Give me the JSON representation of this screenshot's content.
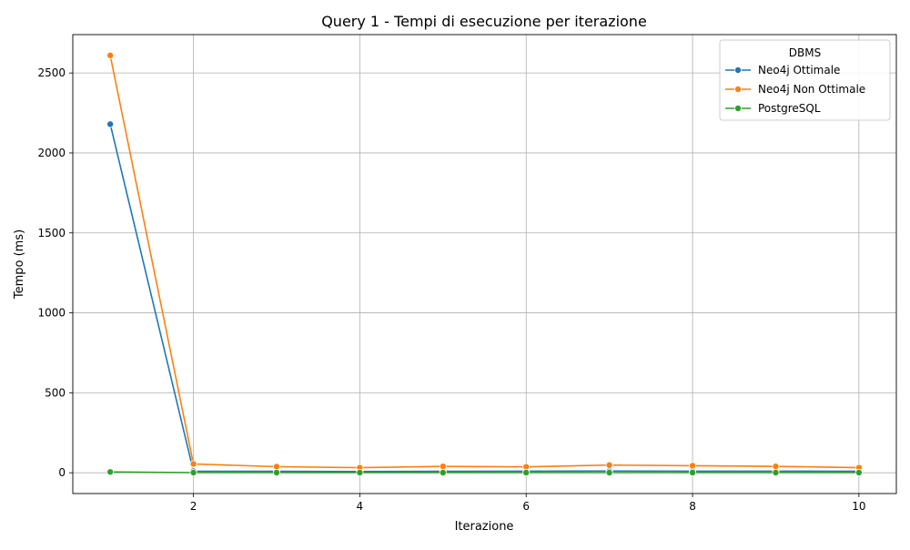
{
  "chart_data": {
    "type": "line",
    "title": "Query 1 - Tempi di esecuzione per iterazione",
    "xlabel": "Iterazione",
    "ylabel": "Tempo (ms)",
    "x": [
      1,
      2,
      3,
      4,
      5,
      6,
      7,
      8,
      9,
      10
    ],
    "xlim": [
      0.55,
      10.45
    ],
    "ylim": [
      -130,
      2740
    ],
    "xticks": [
      2,
      4,
      6,
      8,
      10
    ],
    "yticks": [
      0,
      500,
      1000,
      1500,
      2000,
      2500
    ],
    "grid": true,
    "legend": {
      "title": "DBMS",
      "placement": "top-right"
    },
    "series": [
      {
        "name": "Neo4j Ottimale",
        "color": "#1f77b4",
        "values": [
          2180,
          10,
          9,
          8,
          9,
          10,
          11,
          10,
          10,
          9
        ]
      },
      {
        "name": "Neo4j Non Ottimale",
        "color": "#ff7f0e",
        "values": [
          2610,
          55,
          38,
          32,
          40,
          37,
          48,
          44,
          40,
          32
        ]
      },
      {
        "name": "PostgreSQL",
        "color": "#2ca02c",
        "values": [
          5,
          1,
          1,
          1,
          1,
          1,
          1,
          1,
          1,
          1
        ]
      }
    ]
  }
}
